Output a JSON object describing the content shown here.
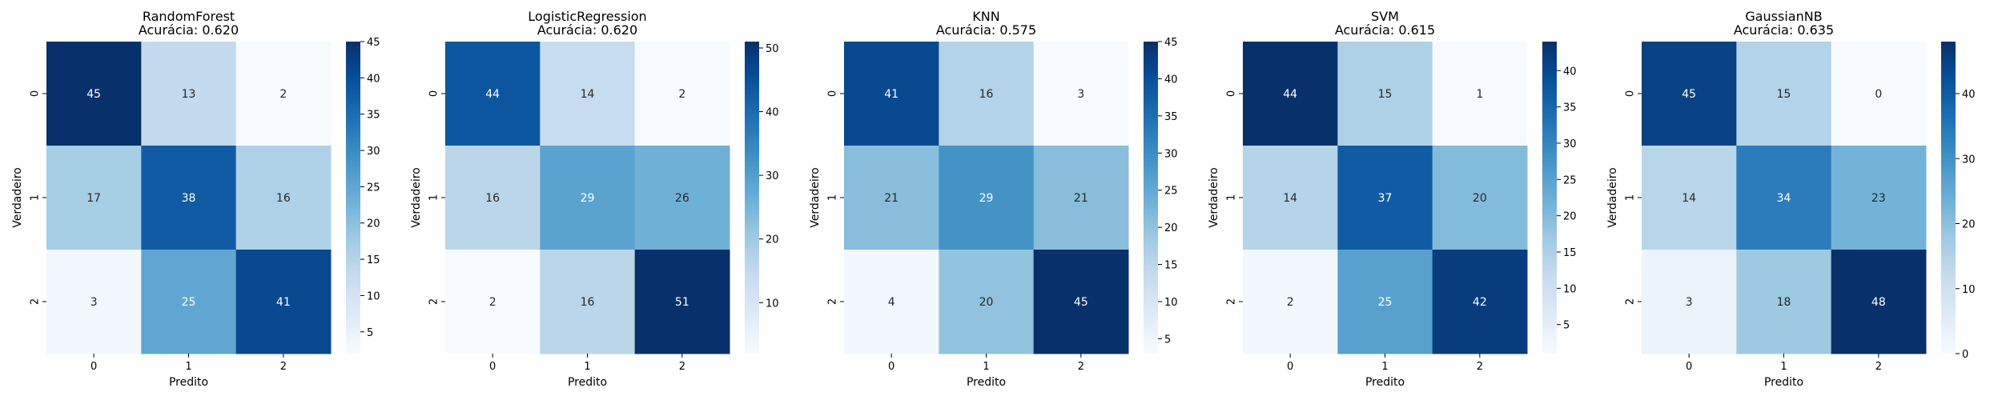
{
  "chart_data": [
    {
      "type": "heatmap",
      "title": "RandomForest",
      "subtitle": "Acurácia: 0.620",
      "xlabel": "Predito",
      "ylabel": "Verdadeiro",
      "x_categories": [
        "0",
        "1",
        "2"
      ],
      "y_categories": [
        "0",
        "1",
        "2"
      ],
      "values": [
        [
          45,
          13,
          2
        ],
        [
          17,
          38,
          16
        ],
        [
          3,
          25,
          41
        ]
      ],
      "colorbar": {
        "min": 2,
        "max": 45,
        "ticks": [
          5,
          10,
          15,
          20,
          25,
          30,
          35,
          40,
          45
        ]
      },
      "colormap": "Blues"
    },
    {
      "type": "heatmap",
      "title": "LogisticRegression",
      "subtitle": "Acurácia: 0.620",
      "xlabel": "Predito",
      "ylabel": "Verdadeiro",
      "x_categories": [
        "0",
        "1",
        "2"
      ],
      "y_categories": [
        "0",
        "1",
        "2"
      ],
      "values": [
        [
          44,
          14,
          2
        ],
        [
          16,
          29,
          26
        ],
        [
          2,
          16,
          51
        ]
      ],
      "colorbar": {
        "min": 2,
        "max": 51,
        "ticks": [
          10,
          20,
          30,
          40,
          50
        ]
      },
      "colormap": "Blues"
    },
    {
      "type": "heatmap",
      "title": "KNN",
      "subtitle": "Acurácia: 0.575",
      "xlabel": "Predito",
      "ylabel": "Verdadeiro",
      "x_categories": [
        "0",
        "1",
        "2"
      ],
      "y_categories": [
        "0",
        "1",
        "2"
      ],
      "values": [
        [
          41,
          16,
          3
        ],
        [
          21,
          29,
          21
        ],
        [
          4,
          20,
          45
        ]
      ],
      "colorbar": {
        "min": 3,
        "max": 45,
        "ticks": [
          5,
          10,
          15,
          20,
          25,
          30,
          35,
          40,
          45
        ]
      },
      "colormap": "Blues"
    },
    {
      "type": "heatmap",
      "title": "SVM",
      "subtitle": "Acurácia: 0.615",
      "xlabel": "Predito",
      "ylabel": "Verdadeiro",
      "x_categories": [
        "0",
        "1",
        "2"
      ],
      "y_categories": [
        "0",
        "1",
        "2"
      ],
      "values": [
        [
          44,
          15,
          1
        ],
        [
          14,
          37,
          20
        ],
        [
          2,
          25,
          42
        ]
      ],
      "colorbar": {
        "min": 1,
        "max": 44,
        "ticks": [
          5,
          10,
          15,
          20,
          25,
          30,
          35,
          40
        ]
      },
      "colormap": "Blues"
    },
    {
      "type": "heatmap",
      "title": "GaussianNB",
      "subtitle": "Acurácia: 0.635",
      "xlabel": "Predito",
      "ylabel": "Verdadeiro",
      "x_categories": [
        "0",
        "1",
        "2"
      ],
      "y_categories": [
        "0",
        "1",
        "2"
      ],
      "values": [
        [
          45,
          15,
          0
        ],
        [
          14,
          34,
          23
        ],
        [
          3,
          18,
          48
        ]
      ],
      "colorbar": {
        "min": 0,
        "max": 48,
        "ticks": [
          0,
          10,
          20,
          30,
          40
        ]
      },
      "colormap": "Blues"
    }
  ]
}
